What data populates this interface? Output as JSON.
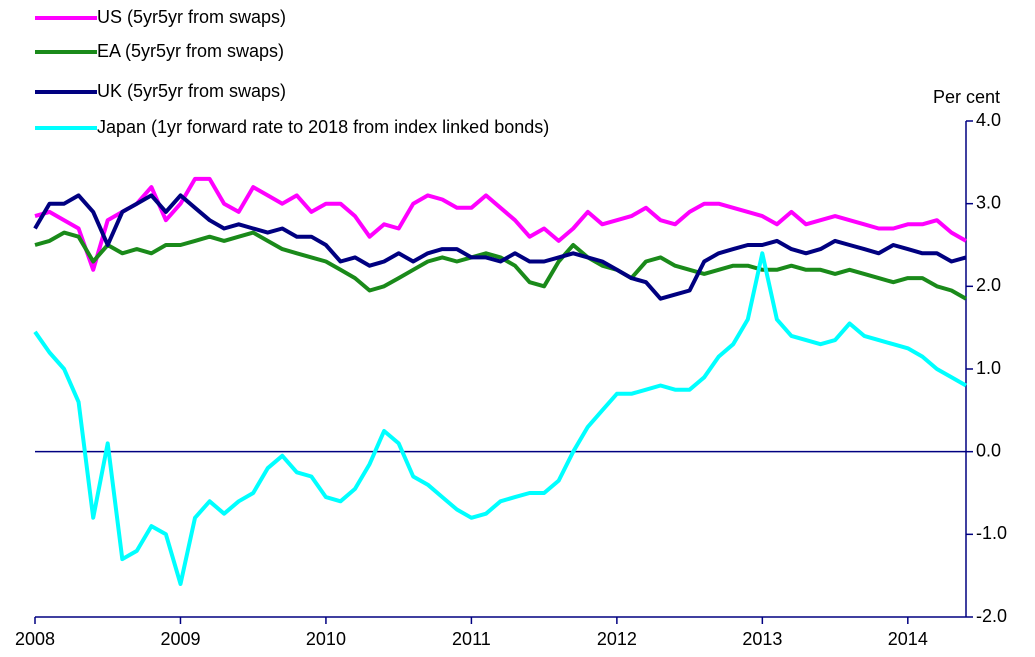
{
  "chart_data": {
    "type": "line",
    "x": [
      2008.0,
      2008.1,
      2008.2,
      2008.3,
      2008.4,
      2008.5,
      2008.6,
      2008.7,
      2008.8,
      2008.9,
      2009.0,
      2009.1,
      2009.2,
      2009.3,
      2009.4,
      2009.5,
      2009.6,
      2009.7,
      2009.8,
      2009.9,
      2010.0,
      2010.1,
      2010.2,
      2010.3,
      2010.4,
      2010.5,
      2010.6,
      2010.7,
      2010.8,
      2010.9,
      2011.0,
      2011.1,
      2011.2,
      2011.3,
      2011.4,
      2011.5,
      2011.6,
      2011.7,
      2011.8,
      2011.9,
      2012.0,
      2012.1,
      2012.2,
      2012.3,
      2012.4,
      2012.5,
      2012.6,
      2012.7,
      2012.8,
      2012.9,
      2013.0,
      2013.1,
      2013.2,
      2013.3,
      2013.4,
      2013.5,
      2013.6,
      2013.7,
      2013.8,
      2013.9,
      2014.0,
      2014.1,
      2014.2,
      2014.3,
      2014.4
    ],
    "series": [
      {
        "name": "US (5yr5yr from swaps)",
        "color": "#ff00ff",
        "values": [
          2.85,
          2.9,
          2.8,
          2.7,
          2.2,
          2.8,
          2.9,
          3.0,
          3.2,
          2.8,
          3.0,
          3.3,
          3.3,
          3.0,
          2.9,
          3.2,
          3.1,
          3.0,
          3.1,
          2.9,
          3.0,
          3.0,
          2.85,
          2.6,
          2.75,
          2.7,
          3.0,
          3.1,
          3.05,
          2.95,
          2.95,
          3.1,
          2.95,
          2.8,
          2.6,
          2.7,
          2.55,
          2.7,
          2.9,
          2.75,
          2.8,
          2.85,
          2.95,
          2.8,
          2.75,
          2.9,
          3.0,
          3.0,
          2.95,
          2.9,
          2.85,
          2.75,
          2.9,
          2.75,
          2.8,
          2.85,
          2.8,
          2.75,
          2.7,
          2.7,
          2.75,
          2.75,
          2.8,
          2.65,
          2.55
        ]
      },
      {
        "name": "EA (5yr5yr from swaps)",
        "color": "#1a8a1a",
        "values": [
          2.5,
          2.55,
          2.65,
          2.6,
          2.3,
          2.5,
          2.4,
          2.45,
          2.4,
          2.5,
          2.5,
          2.55,
          2.6,
          2.55,
          2.6,
          2.65,
          2.55,
          2.45,
          2.4,
          2.35,
          2.3,
          2.2,
          2.1,
          1.95,
          2.0,
          2.1,
          2.2,
          2.3,
          2.35,
          2.3,
          2.35,
          2.4,
          2.35,
          2.25,
          2.05,
          2.0,
          2.3,
          2.5,
          2.35,
          2.25,
          2.2,
          2.1,
          2.3,
          2.35,
          2.25,
          2.2,
          2.15,
          2.2,
          2.25,
          2.25,
          2.2,
          2.2,
          2.25,
          2.2,
          2.2,
          2.15,
          2.2,
          2.15,
          2.1,
          2.05,
          2.1,
          2.1,
          2.0,
          1.95,
          1.85
        ]
      },
      {
        "name": "UK (5yr5yr from swaps)",
        "color": "#000080",
        "values": [
          2.7,
          3.0,
          3.0,
          3.1,
          2.9,
          2.5,
          2.9,
          3.0,
          3.1,
          2.9,
          3.1,
          2.95,
          2.8,
          2.7,
          2.75,
          2.7,
          2.65,
          2.7,
          2.6,
          2.6,
          2.5,
          2.3,
          2.35,
          2.25,
          2.3,
          2.4,
          2.3,
          2.4,
          2.45,
          2.45,
          2.35,
          2.35,
          2.3,
          2.4,
          2.3,
          2.3,
          2.35,
          2.4,
          2.35,
          2.3,
          2.2,
          2.1,
          2.05,
          1.85,
          1.9,
          1.95,
          2.3,
          2.4,
          2.45,
          2.5,
          2.5,
          2.55,
          2.45,
          2.4,
          2.45,
          2.55,
          2.5,
          2.45,
          2.4,
          2.5,
          2.45,
          2.4,
          2.4,
          2.3,
          2.35
        ]
      },
      {
        "name": "Japan (1yr forward rate to 2018 from index linked bonds)",
        "color": "#00ffff",
        "values": [
          1.45,
          1.2,
          1.0,
          0.6,
          -0.8,
          0.1,
          -1.3,
          -1.2,
          -0.9,
          -1.0,
          -1.6,
          -0.8,
          -0.6,
          -0.75,
          -0.6,
          -0.5,
          -0.2,
          -0.05,
          -0.25,
          -0.3,
          -0.55,
          -0.6,
          -0.45,
          -0.15,
          0.25,
          0.1,
          -0.3,
          -0.4,
          -0.55,
          -0.7,
          -0.8,
          -0.75,
          -0.6,
          -0.55,
          -0.5,
          -0.5,
          -0.35,
          0.0,
          0.3,
          0.5,
          0.7,
          0.7,
          0.75,
          0.8,
          0.75,
          0.75,
          0.9,
          1.15,
          1.3,
          1.6,
          2.4,
          1.6,
          1.4,
          1.35,
          1.3,
          1.35,
          1.55,
          1.4,
          1.35,
          1.3,
          1.25,
          1.15,
          1.0,
          0.9,
          0.8
        ]
      }
    ],
    "y_axis_label": "Per cent",
    "xlim": [
      2008,
      2014.4
    ],
    "xticks": [
      2008,
      2009,
      2010,
      2011,
      2012,
      2013,
      2014
    ],
    "ylim": [
      -2,
      4
    ],
    "yticks": [
      {
        "value": 4,
        "label": "4.0"
      },
      {
        "value": 3,
        "label": "3.0"
      },
      {
        "value": 2,
        "label": "2.0"
      },
      {
        "value": 1,
        "label": "1.0"
      },
      {
        "value": 0,
        "label": "0.0"
      },
      {
        "value": -1,
        "label": "-1.0"
      },
      {
        "value": -2,
        "label": "-2.0"
      }
    ],
    "axis_color": "#000080"
  }
}
